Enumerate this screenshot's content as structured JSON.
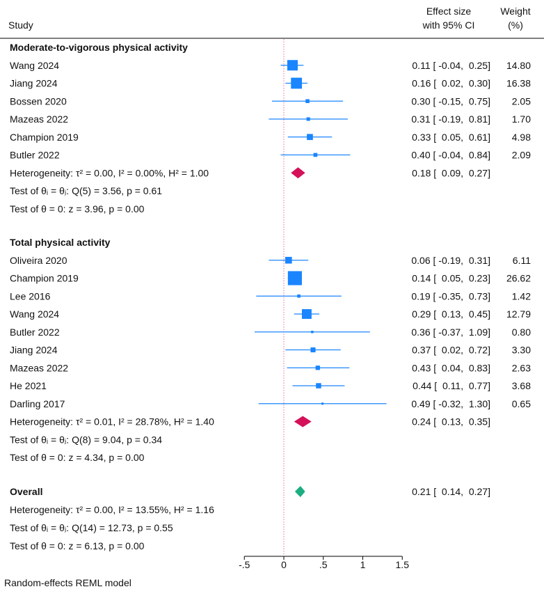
{
  "chart_data": {
    "type": "forest",
    "headers": {
      "study": "Study",
      "effect_line1": "Effect size",
      "effect_line2": "with 95% CI",
      "weight_line1": "Weight",
      "weight_line2": "(%)"
    },
    "xlim": [
      -0.5,
      1.5
    ],
    "xticks": [
      -0.5,
      0,
      0.5,
      1,
      1.5
    ],
    "xtick_labels": [
      "-.5",
      "0",
      ".5",
      "1",
      "1.5"
    ],
    "null_line": 0,
    "colors": {
      "study": "#1a85ff",
      "subgroup": "#d41159",
      "overall": "#1aae80",
      "null_line": "#e0709a"
    },
    "groups": [
      {
        "title": "Moderate-to-vigorous physical activity",
        "studies": [
          {
            "name": "Wang 2024",
            "es": 0.11,
            "lo": -0.04,
            "hi": 0.25,
            "weight": 14.8
          },
          {
            "name": "Jiang 2024",
            "es": 0.16,
            "lo": 0.02,
            "hi": 0.3,
            "weight": 16.38
          },
          {
            "name": "Bossen 2020",
            "es": 0.3,
            "lo": -0.15,
            "hi": 0.75,
            "weight": 2.05
          },
          {
            "name": "Mazeas 2022",
            "es": 0.31,
            "lo": -0.19,
            "hi": 0.81,
            "weight": 1.7
          },
          {
            "name": "Champion 2019",
            "es": 0.33,
            "lo": 0.05,
            "hi": 0.61,
            "weight": 4.98
          },
          {
            "name": "Butler 2022",
            "es": 0.4,
            "lo": -0.04,
            "hi": 0.84,
            "weight": 2.09
          }
        ],
        "pooled": {
          "es": 0.18,
          "lo": 0.09,
          "hi": 0.27
        },
        "heterogeneity": "Heterogeneity: τ² = 0.00, I² = 0.00%, H² = 1.00",
        "test_homogeneity": "Test of θᵢ = θⱼ: Q(5) = 3.56, p = 0.61",
        "test_zero": "Test of θ = 0: z = 3.96, p = 0.00"
      },
      {
        "title": "Total physical activity",
        "studies": [
          {
            "name": "Oliveira 2020",
            "es": 0.06,
            "lo": -0.19,
            "hi": 0.31,
            "weight": 6.11
          },
          {
            "name": "Champion 2019",
            "es": 0.14,
            "lo": 0.05,
            "hi": 0.23,
            "weight": 26.62
          },
          {
            "name": "Lee 2016",
            "es": 0.19,
            "lo": -0.35,
            "hi": 0.73,
            "weight": 1.42
          },
          {
            "name": "Wang 2024",
            "es": 0.29,
            "lo": 0.13,
            "hi": 0.45,
            "weight": 12.79
          },
          {
            "name": "Butler 2022",
            "es": 0.36,
            "lo": -0.37,
            "hi": 1.09,
            "weight": 0.8
          },
          {
            "name": "Jiang 2024",
            "es": 0.37,
            "lo": 0.02,
            "hi": 0.72,
            "weight": 3.3
          },
          {
            "name": "Mazeas 2022",
            "es": 0.43,
            "lo": 0.04,
            "hi": 0.83,
            "weight": 2.63
          },
          {
            "name": "He 2021",
            "es": 0.44,
            "lo": 0.11,
            "hi": 0.77,
            "weight": 3.68
          },
          {
            "name": "Darling 2017",
            "es": 0.49,
            "lo": -0.32,
            "hi": 1.3,
            "weight": 0.65
          }
        ],
        "pooled": {
          "es": 0.24,
          "lo": 0.13,
          "hi": 0.35
        },
        "heterogeneity": "Heterogeneity: τ² = 0.01, I² = 28.78%, H² = 1.40",
        "test_homogeneity": "Test of θᵢ = θⱼ: Q(8) = 9.04, p = 0.34",
        "test_zero": "Test of θ = 0: z = 4.34, p = 0.00"
      }
    ],
    "overall": {
      "title": "Overall",
      "es": 0.21,
      "lo": 0.14,
      "hi": 0.27,
      "heterogeneity": "Heterogeneity: τ² = 0.00, I² = 13.55%, H² = 1.16",
      "test_homogeneity": "Test of θᵢ = θⱼ: Q(14) = 12.73, p = 0.55",
      "test_zero": "Test of θ = 0: z = 6.13, p = 0.00"
    },
    "footnote": "Random-effects REML model"
  }
}
